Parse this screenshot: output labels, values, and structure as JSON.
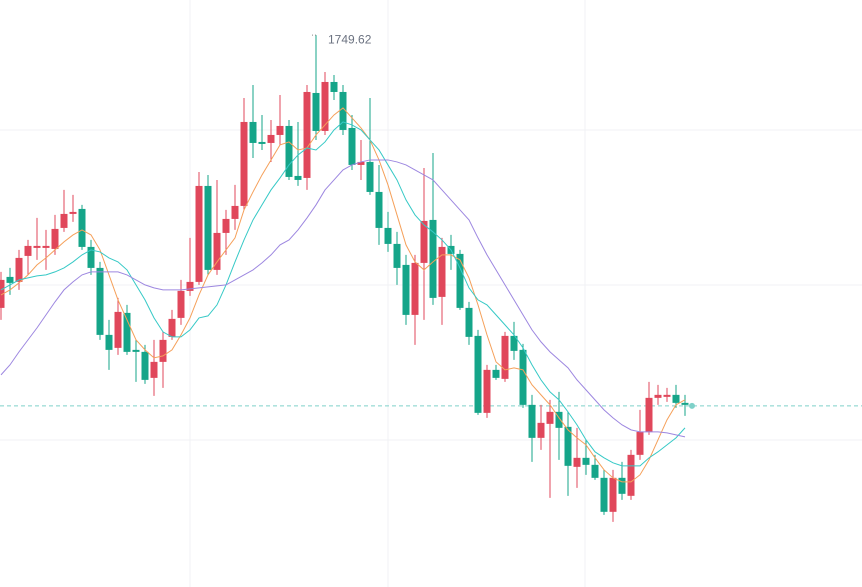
{
  "chart_data": {
    "type": "candlestick",
    "up_color": "#e0475b",
    "down_color": "#15a589",
    "ylim": [
      1611.6,
      1758.4
    ],
    "open": [
      1681.4,
      1689.15,
      1687.9,
      1694.4,
      1696.4,
      1696.4,
      1696.15,
      1701.4,
      1704.9,
      1706.15,
      1696.65,
      1691.4,
      1674.65,
      1671.4,
      1680.15,
      1670.9,
      1670.4,
      1663.9,
      1667.9,
      1674.15,
      1678.9,
      1685.65,
      1687.9,
      1711.9,
      1690.9,
      1700.15,
      1703.65,
      1706.9,
      1727.9,
      1722.9,
      1722.65,
      1724.65,
      1726.9,
      1714.4,
      1713.9,
      1735.15,
      1725.65,
      1737.9,
      1735.4,
      1726.4,
      1717.15,
      1717.9,
      1710.4,
      1701.4,
      1697.4,
      1692.15,
      1679.65,
      1692.65,
      1703.4,
      1684.15,
      1696.9,
      1694.9,
      1681.4,
      1674.4,
      1655.15,
      1665.9,
      1663.65,
      1674.4,
      1670.9,
      1657.15,
      1648.9,
      1652.4,
      1655.4,
      1651.65,
      1641.65,
      1643.9,
      1642.15,
      1638.9,
      1630.4,
      1638.9,
      1634.4,
      1644.65,
      1650.4,
      1658.9,
      1659.15,
      1659.65,
      1657.65
    ],
    "high": [
      1690.4,
      1691.4,
      1695.9,
      1698.4,
      1703.9,
      1700.9,
      1704.65,
      1710.9,
      1709.65,
      1707.15,
      1698.4,
      1692.9,
      1678.4,
      1683.9,
      1682.15,
      1673.4,
      1672.15,
      1673.4,
      1675.4,
      1680.9,
      1688.4,
      1698.9,
      1715.4,
      1714.65,
      1713.4,
      1705.9,
      1712.15,
      1733.9,
      1737.15,
      1729.65,
      1728.4,
      1734.65,
      1728.4,
      1727.9,
      1737.15,
      1749.62,
      1740.4,
      1739.65,
      1737.15,
      1729.65,
      1723.4,
      1733.9,
      1717.15,
      1705.4,
      1700.4,
      1694.65,
      1694.65,
      1716.4,
      1720.15,
      1698.9,
      1699.65,
      1695.9,
      1682.9,
      1675.9,
      1667.15,
      1667.15,
      1675.4,
      1677.9,
      1672.4,
      1659.65,
      1657.15,
      1658.4,
      1660.4,
      1655.4,
      1651.4,
      1648.4,
      1644.65,
      1640.9,
      1640.9,
      1642.9,
      1645.9,
      1655.9,
      1662.9,
      1662.15,
      1661.4,
      1662.15,
      1659.65
    ],
    "low": [
      1678.4,
      1684.65,
      1685.9,
      1689.65,
      1693.4,
      1690.9,
      1694.65,
      1700.4,
      1702.9,
      1695.9,
      1689.65,
      1673.4,
      1665.9,
      1669.65,
      1669.65,
      1662.9,
      1662.4,
      1659.4,
      1661.4,
      1673.4,
      1677.15,
      1684.4,
      1687.15,
      1689.65,
      1689.65,
      1694.65,
      1700.9,
      1705.9,
      1718.9,
      1720.9,
      1717.9,
      1722.15,
      1713.4,
      1711.9,
      1710.9,
      1723.4,
      1724.65,
      1733.4,
      1724.65,
      1715.9,
      1713.4,
      1709.65,
      1697.15,
      1695.4,
      1687.15,
      1677.15,
      1672.15,
      1678.4,
      1682.15,
      1677.15,
      1690.9,
      1680.9,
      1672.15,
      1654.65,
      1653.9,
      1663.4,
      1662.9,
      1668.4,
      1656.4,
      1642.9,
      1645.9,
      1633.9,
      1643.4,
      1634.4,
      1636.4,
      1639.65,
      1638.4,
      1629.65,
      1627.9,
      1633.4,
      1633.4,
      1643.4,
      1649.65,
      1657.15,
      1657.9,
      1656.4,
      1654.4
    ],
    "close": [
      1688.4,
      1687.65,
      1693.9,
      1696.9,
      1696.9,
      1696.9,
      1701.15,
      1704.9,
      1705.4,
      1696.65,
      1691.4,
      1674.65,
      1670.9,
      1680.4,
      1670.4,
      1670.4,
      1663.4,
      1667.9,
      1673.4,
      1678.65,
      1685.65,
      1687.9,
      1711.9,
      1690.9,
      1700.15,
      1703.65,
      1706.9,
      1727.9,
      1722.65,
      1722.4,
      1724.65,
      1726.9,
      1714.15,
      1713.4,
      1735.4,
      1725.65,
      1737.9,
      1735.4,
      1725.9,
      1717.15,
      1717.9,
      1710.4,
      1701.4,
      1697.4,
      1691.4,
      1679.65,
      1692.65,
      1703.15,
      1683.9,
      1696.65,
      1694.9,
      1681.4,
      1674.15,
      1655.15,
      1665.9,
      1663.9,
      1674.4,
      1670.65,
      1657.15,
      1648.9,
      1652.65,
      1655.4,
      1651.4,
      1641.9,
      1643.9,
      1642.15,
      1638.9,
      1630.4,
      1638.9,
      1634.9,
      1644.65,
      1650.4,
      1658.9,
      1659.65,
      1659.65,
      1657.65,
      1657.15
    ],
    "moving_averages": [
      {
        "color": "#f5a05a",
        "values": [
          1684.65,
          1685.9,
          1687.65,
          1689.65,
          1692.15,
          1693.9,
          1695.9,
          1697.9,
          1699.65,
          1700.9,
          1699.65,
          1695.9,
          1689.65,
          1683.4,
          1678.4,
          1673.4,
          1670.9,
          1668.9,
          1669.4,
          1670.9,
          1674.65,
          1678.9,
          1684.65,
          1689.65,
          1692.9,
          1695.9,
          1698.9,
          1705.9,
          1710.4,
          1714.65,
          1718.4,
          1722.15,
          1722.9,
          1720.9,
          1721.4,
          1724.65,
          1727.15,
          1729.65,
          1731.4,
          1728.9,
          1726.4,
          1723.4,
          1718.4,
          1712.15,
          1704.65,
          1697.15,
          1692.9,
          1690.9,
          1692.9,
          1694.65,
          1694.65,
          1693.4,
          1688.9,
          1682.15,
          1674.65,
          1667.9,
          1665.9,
          1666.4,
          1665.9,
          1662.15,
          1659.65,
          1657.15,
          1653.9,
          1650.9,
          1648.9,
          1647.15,
          1643.9,
          1640.9,
          1638.9,
          1637.9,
          1637.9,
          1639.65,
          1643.4,
          1648.4,
          1653.4,
          1657.15,
          1658.4
        ]
      },
      {
        "color": "#36c9c6",
        "values": [
          1685.9,
          1687.15,
          1688.4,
          1688.9,
          1689.4,
          1689.65,
          1690.4,
          1691.4,
          1692.9,
          1694.65,
          1695.9,
          1695.4,
          1693.9,
          1692.9,
          1690.9,
          1687.15,
          1683.4,
          1678.9,
          1675.4,
          1674.15,
          1674.15,
          1675.9,
          1678.9,
          1679.4,
          1682.15,
          1687.15,
          1692.9,
          1698.4,
          1703.4,
          1707.15,
          1710.9,
          1713.9,
          1717.15,
          1719.65,
          1721.4,
          1720.9,
          1722.9,
          1725.9,
          1727.9,
          1727.15,
          1725.9,
          1723.4,
          1720.9,
          1717.15,
          1713.4,
          1708.4,
          1704.65,
          1702.15,
          1700.4,
          1698.4,
          1695.9,
          1691.4,
          1686.4,
          1683.4,
          1682.15,
          1679.65,
          1677.15,
          1674.65,
          1671.4,
          1667.15,
          1663.4,
          1660.4,
          1658.4,
          1655.4,
          1652.15,
          1648.4,
          1645.4,
          1643.9,
          1642.65,
          1641.9,
          1641.9,
          1641.9,
          1643.9,
          1645.4,
          1647.15,
          1648.9,
          1651.4
        ]
      },
      {
        "color": "#9d87e0",
        "values": [
          1664.65,
          1667.15,
          1670.4,
          1673.4,
          1676.4,
          1679.65,
          1682.9,
          1685.9,
          1687.9,
          1689.65,
          1690.4,
          1690.4,
          1690.4,
          1690.4,
          1689.65,
          1688.4,
          1687.15,
          1686.4,
          1685.9,
          1685.9,
          1685.9,
          1686.15,
          1686.4,
          1686.65,
          1686.9,
          1687.15,
          1688.4,
          1689.65,
          1690.9,
          1692.65,
          1694.65,
          1697.15,
          1698.4,
          1700.9,
          1703.9,
          1707.15,
          1710.9,
          1713.4,
          1715.9,
          1717.15,
          1717.9,
          1718.4,
          1718.4,
          1718.4,
          1717.9,
          1717.15,
          1715.9,
          1714.65,
          1713.4,
          1710.9,
          1708.4,
          1705.9,
          1703.4,
          1698.9,
          1694.65,
          1690.9,
          1687.15,
          1683.4,
          1679.65,
          1675.9,
          1672.9,
          1670.4,
          1668.4,
          1666.4,
          1663.4,
          1660.9,
          1658.4,
          1655.9,
          1653.9,
          1652.15,
          1650.9,
          1650.4,
          1650.4,
          1650.4,
          1650.15,
          1649.65,
          1649.15
        ]
      }
    ],
    "current_price": 1656.9,
    "current_price_color": "#7fd1c9"
  }
}
